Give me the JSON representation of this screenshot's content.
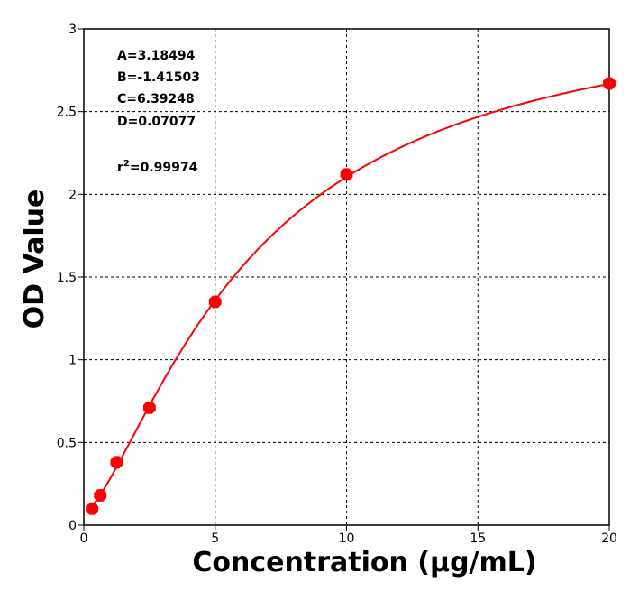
{
  "chart_data": {
    "type": "scatter",
    "title": "",
    "xlabel": "Concentration (µg/mL)",
    "ylabel": "OD Value",
    "xlim": [
      0,
      20
    ],
    "ylim": [
      0,
      3
    ],
    "x_ticks": [
      0,
      5,
      10,
      15,
      20
    ],
    "y_ticks": [
      0,
      0.5,
      1,
      1.5,
      2,
      2.5,
      3
    ],
    "x_tick_labels": [
      "0",
      "5",
      "10",
      "15",
      "20"
    ],
    "y_tick_labels": [
      "0",
      "0.5",
      "1",
      "1.5",
      "2",
      "2.5",
      "3"
    ],
    "grid": true,
    "series": [
      {
        "x": [
          0.3125,
          0.625,
          1.25,
          2.5,
          5,
          10,
          20
        ],
        "y": [
          0.1,
          0.18,
          0.38,
          0.71,
          1.35,
          2.12,
          2.67
        ],
        "color": "#ff0000"
      }
    ],
    "fit": {
      "model": "4PL",
      "A": 3.18494,
      "B": -1.41503,
      "C": 6.39248,
      "D": 0.07077,
      "r2": 0.99974,
      "color": "#ff0000"
    },
    "annotations": {
      "a": "A=3.18494",
      "b": "B=-1.41503",
      "c": "C=6.39248",
      "d": "D=0.07077",
      "r2_prefix": "r",
      "r2_sup": "2",
      "r2_value": "=0.99974"
    }
  }
}
